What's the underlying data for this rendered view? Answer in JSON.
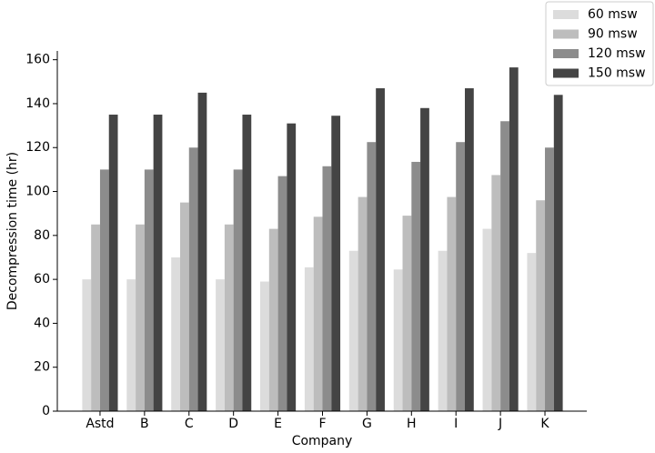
{
  "chart_data": {
    "type": "bar",
    "xlabel": "Company",
    "ylabel": "Decompression time (hr)",
    "categories": [
      "Astd",
      "B",
      "C",
      "D",
      "E",
      "F",
      "G",
      "H",
      "I",
      "J",
      "K"
    ],
    "series": [
      {
        "name": "60 msw",
        "color": "#dcdcdc",
        "values": [
          60,
          60,
          70,
          60,
          59,
          65.5,
          73,
          64.5,
          73,
          83,
          72
        ]
      },
      {
        "name": "90 msw",
        "color": "#bdbdbd",
        "values": [
          85,
          85,
          95,
          85,
          83,
          88.5,
          97.5,
          89,
          97.5,
          107.5,
          96
        ]
      },
      {
        "name": "120 msw",
        "color": "#8c8c8c",
        "values": [
          110,
          110,
          120,
          110,
          107,
          111.5,
          122.5,
          113.5,
          122.5,
          132,
          120
        ]
      },
      {
        "name": "150 msw",
        "color": "#444444",
        "values": [
          135,
          135,
          145,
          135,
          131,
          134.5,
          147,
          138,
          147,
          156.5,
          144
        ]
      }
    ],
    "ylim": [
      0,
      164
    ],
    "yticks": [
      0,
      20,
      40,
      60,
      80,
      100,
      120,
      140,
      160
    ],
    "legend": "upper right"
  }
}
